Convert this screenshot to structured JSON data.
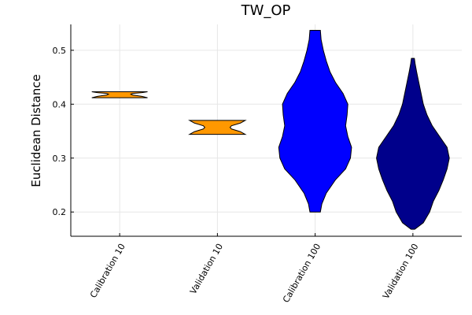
{
  "chart_data": {
    "type": "violin",
    "title": "TW_OP",
    "xlabel": "",
    "ylabel": "Euclidean Distance",
    "ylim": [
      0.155,
      0.548
    ],
    "yticks": [
      "0.2",
      "0.3",
      "0.4",
      "0.5"
    ],
    "yticks_values": [
      0.2,
      0.3,
      0.4,
      0.5
    ],
    "grid": true,
    "categories": [
      "Calibration 10",
      "Validation 10",
      "Calibration 100",
      "Validation 100"
    ],
    "series": [
      {
        "category": "Calibration 10",
        "color": "#FF9800",
        "min": 0.412,
        "max": 0.423,
        "profile": [
          [
            0.412,
            0.75
          ],
          [
            0.4145,
            0.6
          ],
          [
            0.417,
            0.35
          ],
          [
            0.4185,
            0.3
          ],
          [
            0.42,
            0.35
          ],
          [
            0.4215,
            0.6
          ],
          [
            0.423,
            0.75
          ]
        ]
      },
      {
        "category": "Validation 10",
        "color": "#FF9800",
        "min": 0.344,
        "max": 0.37,
        "profile": [
          [
            0.344,
            0.75
          ],
          [
            0.349,
            0.62
          ],
          [
            0.354,
            0.38
          ],
          [
            0.357,
            0.34
          ],
          [
            0.36,
            0.38
          ],
          [
            0.365,
            0.62
          ],
          [
            0.37,
            0.75
          ]
        ]
      },
      {
        "category": "Calibration 100",
        "color": "#0000FF",
        "min": 0.2,
        "max": 0.537,
        "profile": [
          [
            0.2,
            0.14
          ],
          [
            0.215,
            0.18
          ],
          [
            0.235,
            0.3
          ],
          [
            0.26,
            0.55
          ],
          [
            0.28,
            0.82
          ],
          [
            0.3,
            0.95
          ],
          [
            0.32,
            0.98
          ],
          [
            0.34,
            0.88
          ],
          [
            0.36,
            0.82
          ],
          [
            0.38,
            0.86
          ],
          [
            0.4,
            0.88
          ],
          [
            0.42,
            0.75
          ],
          [
            0.44,
            0.55
          ],
          [
            0.46,
            0.4
          ],
          [
            0.48,
            0.3
          ],
          [
            0.5,
            0.22
          ],
          [
            0.52,
            0.16
          ],
          [
            0.537,
            0.14
          ]
        ]
      },
      {
        "category": "Validation 100",
        "color": "#00008B",
        "min": 0.168,
        "max": 0.485,
        "profile": [
          [
            0.168,
            0.05
          ],
          [
            0.18,
            0.28
          ],
          [
            0.2,
            0.45
          ],
          [
            0.22,
            0.55
          ],
          [
            0.24,
            0.7
          ],
          [
            0.26,
            0.82
          ],
          [
            0.28,
            0.92
          ],
          [
            0.3,
            0.98
          ],
          [
            0.32,
            0.92
          ],
          [
            0.34,
            0.72
          ],
          [
            0.36,
            0.52
          ],
          [
            0.38,
            0.38
          ],
          [
            0.4,
            0.28
          ],
          [
            0.42,
            0.22
          ],
          [
            0.44,
            0.16
          ],
          [
            0.46,
            0.1
          ],
          [
            0.475,
            0.06
          ],
          [
            0.485,
            0.04
          ]
        ]
      }
    ]
  }
}
